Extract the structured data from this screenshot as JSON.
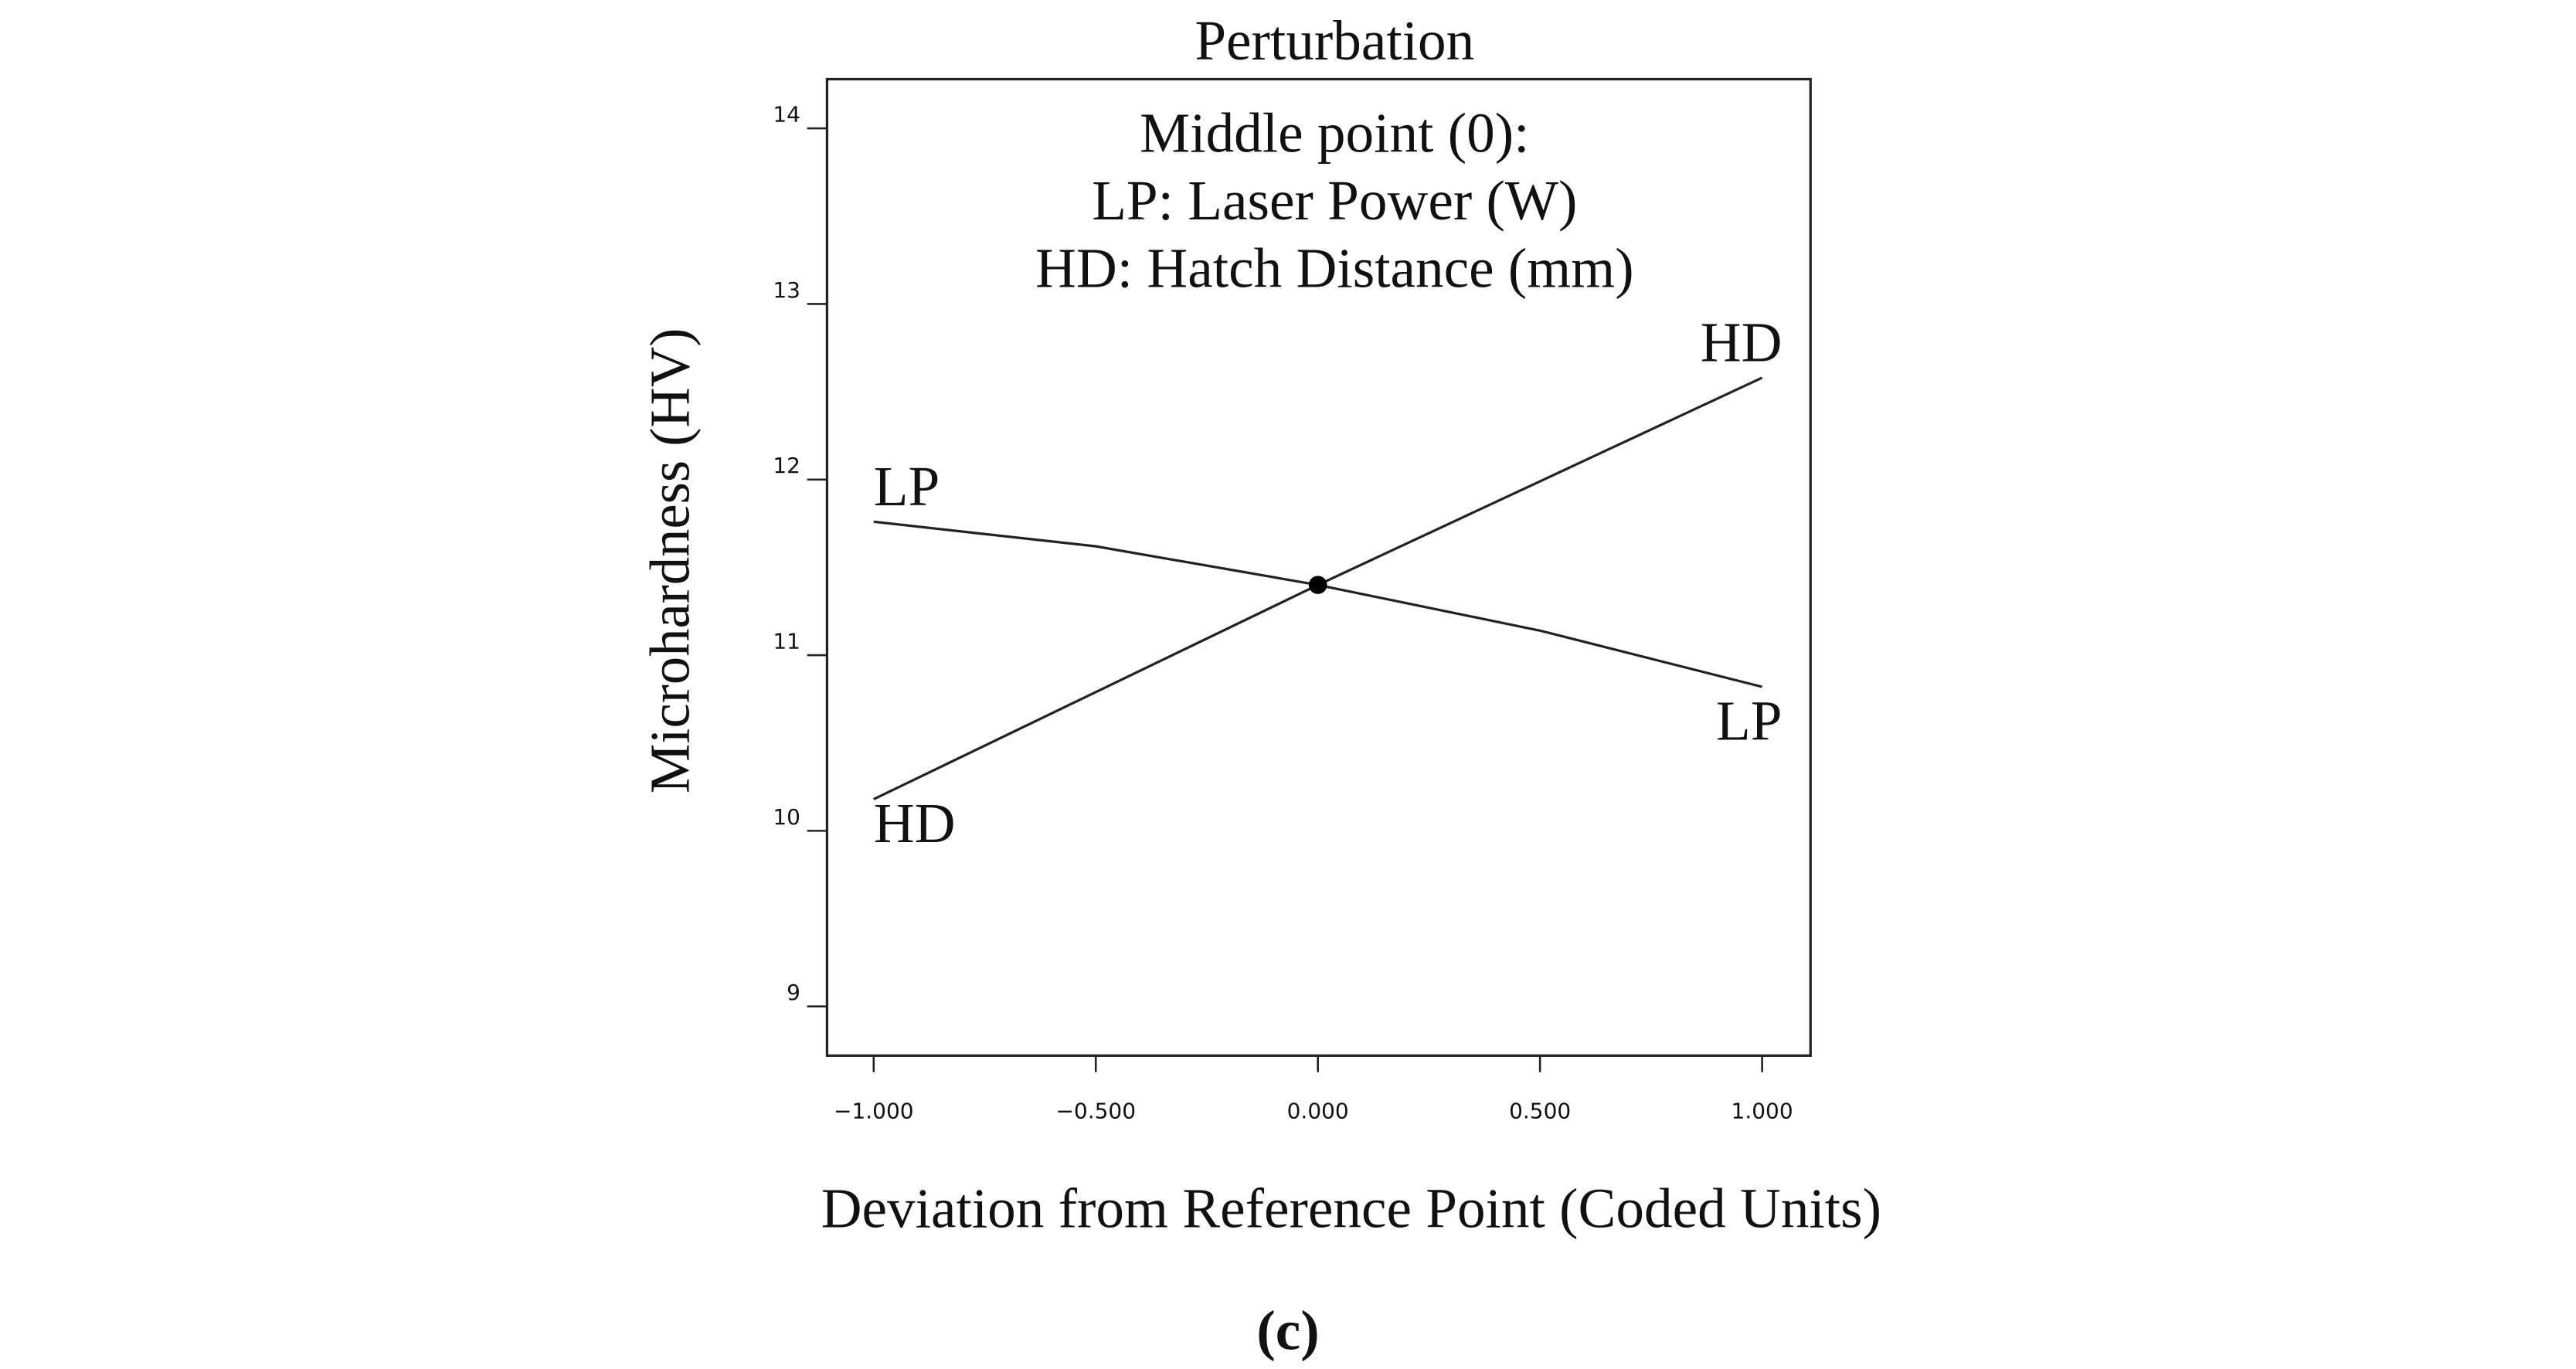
{
  "chart_data": {
    "type": "line",
    "title": "Perturbation",
    "annotations": [
      "Middle point (0):",
      "LP: Laser Power (W)",
      "HD: Hatch Distance (mm)"
    ],
    "x_label": "Deviation from Reference Point (Coded Units)",
    "y_label": "Microhardness (HV)",
    "caption": "(c)",
    "x": [
      -1,
      -0.5,
      0,
      0.5,
      1
    ],
    "series": [
      {
        "name": "LP",
        "color": "#222222",
        "values": [
          11.76,
          11.62,
          11.4,
          11.14,
          10.82
        ]
      },
      {
        "name": "HD",
        "color": "#222222",
        "values": [
          10.18,
          10.79,
          11.4,
          11.99,
          12.58
        ]
      }
    ],
    "reference_point": {
      "x": 0,
      "y": 11.4
    },
    "xlim": [
      -1.105,
      1.109
    ],
    "ylim": [
      8.72,
      14.28
    ],
    "xticks": [
      {
        "value": -1,
        "label": "−1.000"
      },
      {
        "value": -0.5,
        "label": "−0.500"
      },
      {
        "value": 0,
        "label": "0.000"
      },
      {
        "value": 0.5,
        "label": "0.500"
      },
      {
        "value": 1,
        "label": "1.000"
      }
    ],
    "yticks": [
      9,
      10,
      11,
      12,
      13,
      14
    ],
    "grid": false
  }
}
